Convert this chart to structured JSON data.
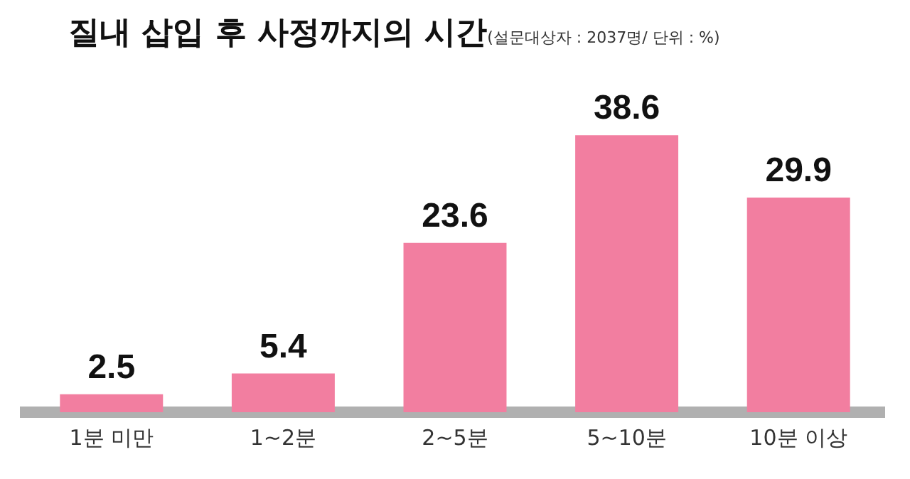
{
  "chart_data": {
    "type": "bar",
    "title": "질내 삽입 후 사정까지의 시간",
    "subtitle": "(설문대상자 : 2037명/ 단위 : %)",
    "categories": [
      "1분 미만",
      "1~2분",
      "2~5분",
      "5~10분",
      "10분 이상"
    ],
    "values": [
      2.5,
      5.4,
      23.6,
      38.6,
      29.9
    ],
    "color": "#f27ea0",
    "data_labels": true,
    "legend": false
  }
}
